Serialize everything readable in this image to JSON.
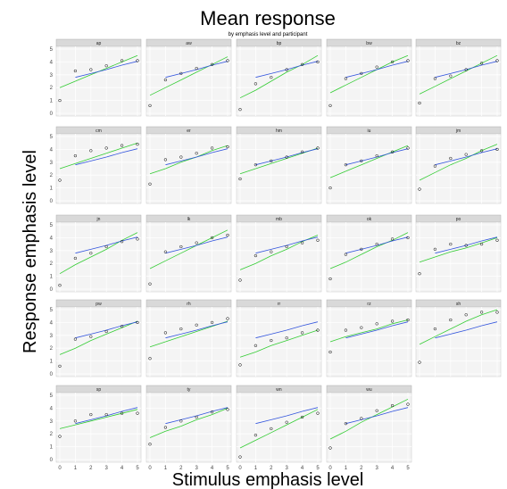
{
  "chart_data": {
    "type": "scatter",
    "title": "Mean response",
    "subtitle": "by emphasis level and participant",
    "xlabel": "Stimulus emphasis level",
    "ylabel": "Response emphasis level",
    "xlim": [
      0,
      5
    ],
    "ylim": [
      0,
      5
    ],
    "x_ticks": [
      "0",
      "1",
      "2",
      "3",
      "4",
      "5"
    ],
    "y_ticks": [
      "0",
      "1",
      "2",
      "3",
      "4",
      "5"
    ],
    "grid": true,
    "x": [
      0,
      1,
      2,
      3,
      4,
      5
    ],
    "line_colors": {
      "fit": "#33cc33",
      "reference": "#3355dd"
    },
    "panels": [
      {
        "name": "ap",
        "points": [
          1.0,
          3.3,
          3.4,
          3.7,
          4.1,
          4.1
        ],
        "fit": [
          2.0,
          2.5,
          3.0,
          3.5,
          4.0,
          4.5
        ],
        "reference": [
          null,
          2.8,
          3.1,
          3.4,
          3.75,
          4.05
        ]
      },
      {
        "name": "aw",
        "points": [
          0.6,
          2.6,
          3.1,
          3.5,
          3.8,
          4.1
        ],
        "fit": [
          1.4,
          2.0,
          2.6,
          3.2,
          3.8,
          4.4
        ],
        "reference": [
          null,
          2.8,
          3.1,
          3.4,
          3.75,
          4.05
        ]
      },
      {
        "name": "bp",
        "points": [
          0.3,
          2.3,
          2.8,
          3.4,
          3.8,
          4.0
        ],
        "fit": [
          1.2,
          1.8,
          2.5,
          3.2,
          3.8,
          4.5
        ],
        "reference": [
          null,
          2.8,
          3.1,
          3.4,
          3.75,
          4.05
        ]
      },
      {
        "name": "bw",
        "points": [
          0.6,
          2.7,
          3.1,
          3.6,
          4.0,
          4.1
        ],
        "fit": [
          1.6,
          2.2,
          2.8,
          3.4,
          4.0,
          4.5
        ],
        "reference": [
          null,
          2.8,
          3.1,
          3.4,
          3.75,
          4.05
        ]
      },
      {
        "name": "bz",
        "points": [
          0.8,
          2.7,
          2.9,
          3.4,
          3.9,
          4.1
        ],
        "fit": [
          1.5,
          2.1,
          2.7,
          3.3,
          3.9,
          4.5
        ],
        "reference": [
          null,
          2.8,
          3.1,
          3.4,
          3.75,
          4.05
        ]
      },
      {
        "name": "cm",
        "points": [
          1.6,
          3.5,
          3.9,
          4.1,
          4.3,
          4.4
        ],
        "fit": [
          2.5,
          2.9,
          3.3,
          3.7,
          4.1,
          4.5
        ],
        "reference": [
          null,
          2.8,
          3.1,
          3.4,
          3.75,
          4.05
        ]
      },
      {
        "name": "er",
        "points": [
          1.3,
          3.2,
          3.4,
          3.7,
          4.1,
          4.2
        ],
        "fit": [
          2.1,
          2.5,
          3.0,
          3.4,
          3.9,
          4.3
        ],
        "reference": [
          null,
          2.8,
          3.1,
          3.4,
          3.75,
          4.05
        ]
      },
      {
        "name": "hm",
        "points": [
          1.7,
          2.8,
          3.1,
          3.4,
          3.8,
          4.1
        ],
        "fit": [
          2.1,
          2.5,
          2.9,
          3.3,
          3.7,
          4.1
        ],
        "reference": [
          null,
          2.8,
          3.1,
          3.4,
          3.75,
          4.05
        ]
      },
      {
        "name": "iu",
        "points": [
          1.0,
          2.8,
          3.1,
          3.5,
          3.8,
          4.1
        ],
        "fit": [
          1.8,
          2.3,
          2.8,
          3.3,
          3.8,
          4.3
        ],
        "reference": [
          null,
          2.8,
          3.1,
          3.4,
          3.75,
          4.05
        ]
      },
      {
        "name": "jm",
        "points": [
          0.9,
          2.7,
          3.3,
          3.6,
          3.9,
          4.0
        ],
        "fit": [
          1.6,
          2.2,
          2.8,
          3.3,
          3.9,
          4.4
        ],
        "reference": [
          null,
          2.8,
          3.1,
          3.4,
          3.75,
          4.05
        ]
      },
      {
        "name": "jn",
        "points": [
          0.3,
          2.4,
          2.8,
          3.3,
          3.7,
          3.9
        ],
        "fit": [
          1.2,
          1.9,
          2.5,
          3.1,
          3.8,
          4.4
        ],
        "reference": [
          null,
          2.8,
          3.1,
          3.4,
          3.75,
          4.05
        ]
      },
      {
        "name": "lk",
        "points": [
          0.4,
          2.9,
          3.3,
          3.6,
          4.0,
          4.2
        ],
        "fit": [
          1.6,
          2.2,
          2.8,
          3.4,
          4.0,
          4.6
        ],
        "reference": [
          null,
          2.8,
          3.1,
          3.4,
          3.75,
          4.05
        ]
      },
      {
        "name": "mb",
        "points": [
          0.7,
          2.6,
          2.9,
          3.3,
          3.6,
          3.8
        ],
        "fit": [
          1.5,
          2.0,
          2.6,
          3.1,
          3.7,
          4.2
        ],
        "reference": [
          null,
          2.8,
          3.1,
          3.4,
          3.75,
          4.05
        ]
      },
      {
        "name": "ok",
        "points": [
          0.8,
          2.7,
          3.1,
          3.5,
          3.9,
          4.0
        ],
        "fit": [
          1.6,
          2.1,
          2.7,
          3.3,
          3.8,
          4.4
        ],
        "reference": [
          null,
          2.8,
          3.1,
          3.4,
          3.75,
          4.05
        ]
      },
      {
        "name": "po",
        "points": [
          1.2,
          3.1,
          3.5,
          3.4,
          3.5,
          3.8
        ],
        "fit": [
          2.1,
          2.5,
          2.9,
          3.2,
          3.6,
          4.0
        ],
        "reference": [
          null,
          2.8,
          3.1,
          3.4,
          3.75,
          4.05
        ]
      },
      {
        "name": "pw",
        "points": [
          0.6,
          2.7,
          2.9,
          3.3,
          3.7,
          4.0
        ],
        "fit": [
          1.5,
          2.0,
          2.6,
          3.1,
          3.6,
          4.1
        ],
        "reference": [
          null,
          2.8,
          3.1,
          3.4,
          3.75,
          4.05
        ]
      },
      {
        "name": "rh",
        "points": [
          1.2,
          3.2,
          3.5,
          3.8,
          4.0,
          4.3
        ],
        "fit": [
          2.1,
          2.5,
          2.9,
          3.3,
          3.7,
          4.1
        ],
        "reference": [
          null,
          2.8,
          3.1,
          3.4,
          3.75,
          4.05
        ]
      },
      {
        "name": "rr",
        "points": [
          0.7,
          2.2,
          2.6,
          2.8,
          3.2,
          3.4
        ],
        "fit": [
          1.3,
          1.7,
          2.2,
          2.6,
          3.0,
          3.4
        ],
        "reference": [
          null,
          2.8,
          3.1,
          3.4,
          3.75,
          4.05
        ]
      },
      {
        "name": "rz",
        "points": [
          1.7,
          3.4,
          3.6,
          3.9,
          4.1,
          4.2
        ],
        "fit": [
          2.5,
          2.9,
          3.2,
          3.5,
          3.9,
          4.2
        ],
        "reference": [
          null,
          2.8,
          3.1,
          3.4,
          3.75,
          4.05
        ]
      },
      {
        "name": "sh",
        "points": [
          0.9,
          3.5,
          4.2,
          4.6,
          4.8,
          4.8
        ],
        "fit": [
          2.3,
          2.9,
          3.5,
          4.1,
          4.6,
          5.0
        ],
        "reference": [
          null,
          2.8,
          3.1,
          3.4,
          3.75,
          4.05
        ]
      },
      {
        "name": "sp",
        "points": [
          1.8,
          3.0,
          3.5,
          3.5,
          3.6,
          3.6
        ],
        "fit": [
          2.4,
          2.7,
          3.0,
          3.3,
          3.6,
          3.9
        ],
        "reference": [
          null,
          2.8,
          3.1,
          3.4,
          3.75,
          4.05
        ]
      },
      {
        "name": "ty",
        "points": [
          1.2,
          2.5,
          3.0,
          3.3,
          3.7,
          3.9
        ],
        "fit": [
          1.7,
          2.2,
          2.6,
          3.1,
          3.5,
          4.0
        ],
        "reference": [
          null,
          2.8,
          3.1,
          3.4,
          3.75,
          4.05
        ]
      },
      {
        "name": "wn",
        "points": [
          0.2,
          1.9,
          2.4,
          2.9,
          3.3,
          3.6
        ],
        "fit": [
          0.9,
          1.5,
          2.1,
          2.7,
          3.3,
          3.9
        ],
        "reference": [
          null,
          2.8,
          3.1,
          3.4,
          3.75,
          4.05
        ]
      },
      {
        "name": "wu",
        "points": [
          0.9,
          2.8,
          3.2,
          3.8,
          4.2,
          4.3
        ],
        "fit": [
          1.6,
          2.2,
          2.9,
          3.5,
          4.1,
          4.7
        ],
        "reference": [
          null,
          2.8,
          3.1,
          3.4,
          3.75,
          4.05
        ]
      }
    ]
  }
}
